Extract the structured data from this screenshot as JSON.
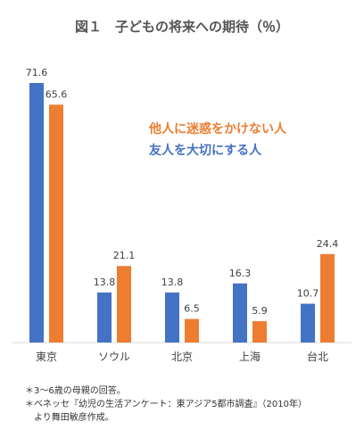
{
  "chart_data": {
    "type": "bar",
    "title": "図１　子どもの将来への期待（％）",
    "categories": [
      "東京",
      "ソウル",
      "北京",
      "上海",
      "台北"
    ],
    "series": [
      {
        "name": "友人を大切にする人",
        "color": "#4472C4",
        "values": [
          71.6,
          13.8,
          13.8,
          16.3,
          10.7
        ]
      },
      {
        "name": "他人に迷惑をかけない人",
        "color": "#ED7D31",
        "values": [
          65.6,
          21.1,
          6.5,
          5.9,
          24.4
        ]
      }
    ],
    "legend_order": [
      1,
      0
    ],
    "legend_position": "top-right",
    "ylim": [
      0,
      71.6
    ],
    "grid": false,
    "xlabel": "",
    "ylabel": ""
  },
  "notes": [
    "＊3～6歳の母親の回答。",
    "＊ベネッセ『幼児の生活アンケート：東アジア5都市調査』（2010年）",
    "　より舞田敏彦作成。"
  ]
}
